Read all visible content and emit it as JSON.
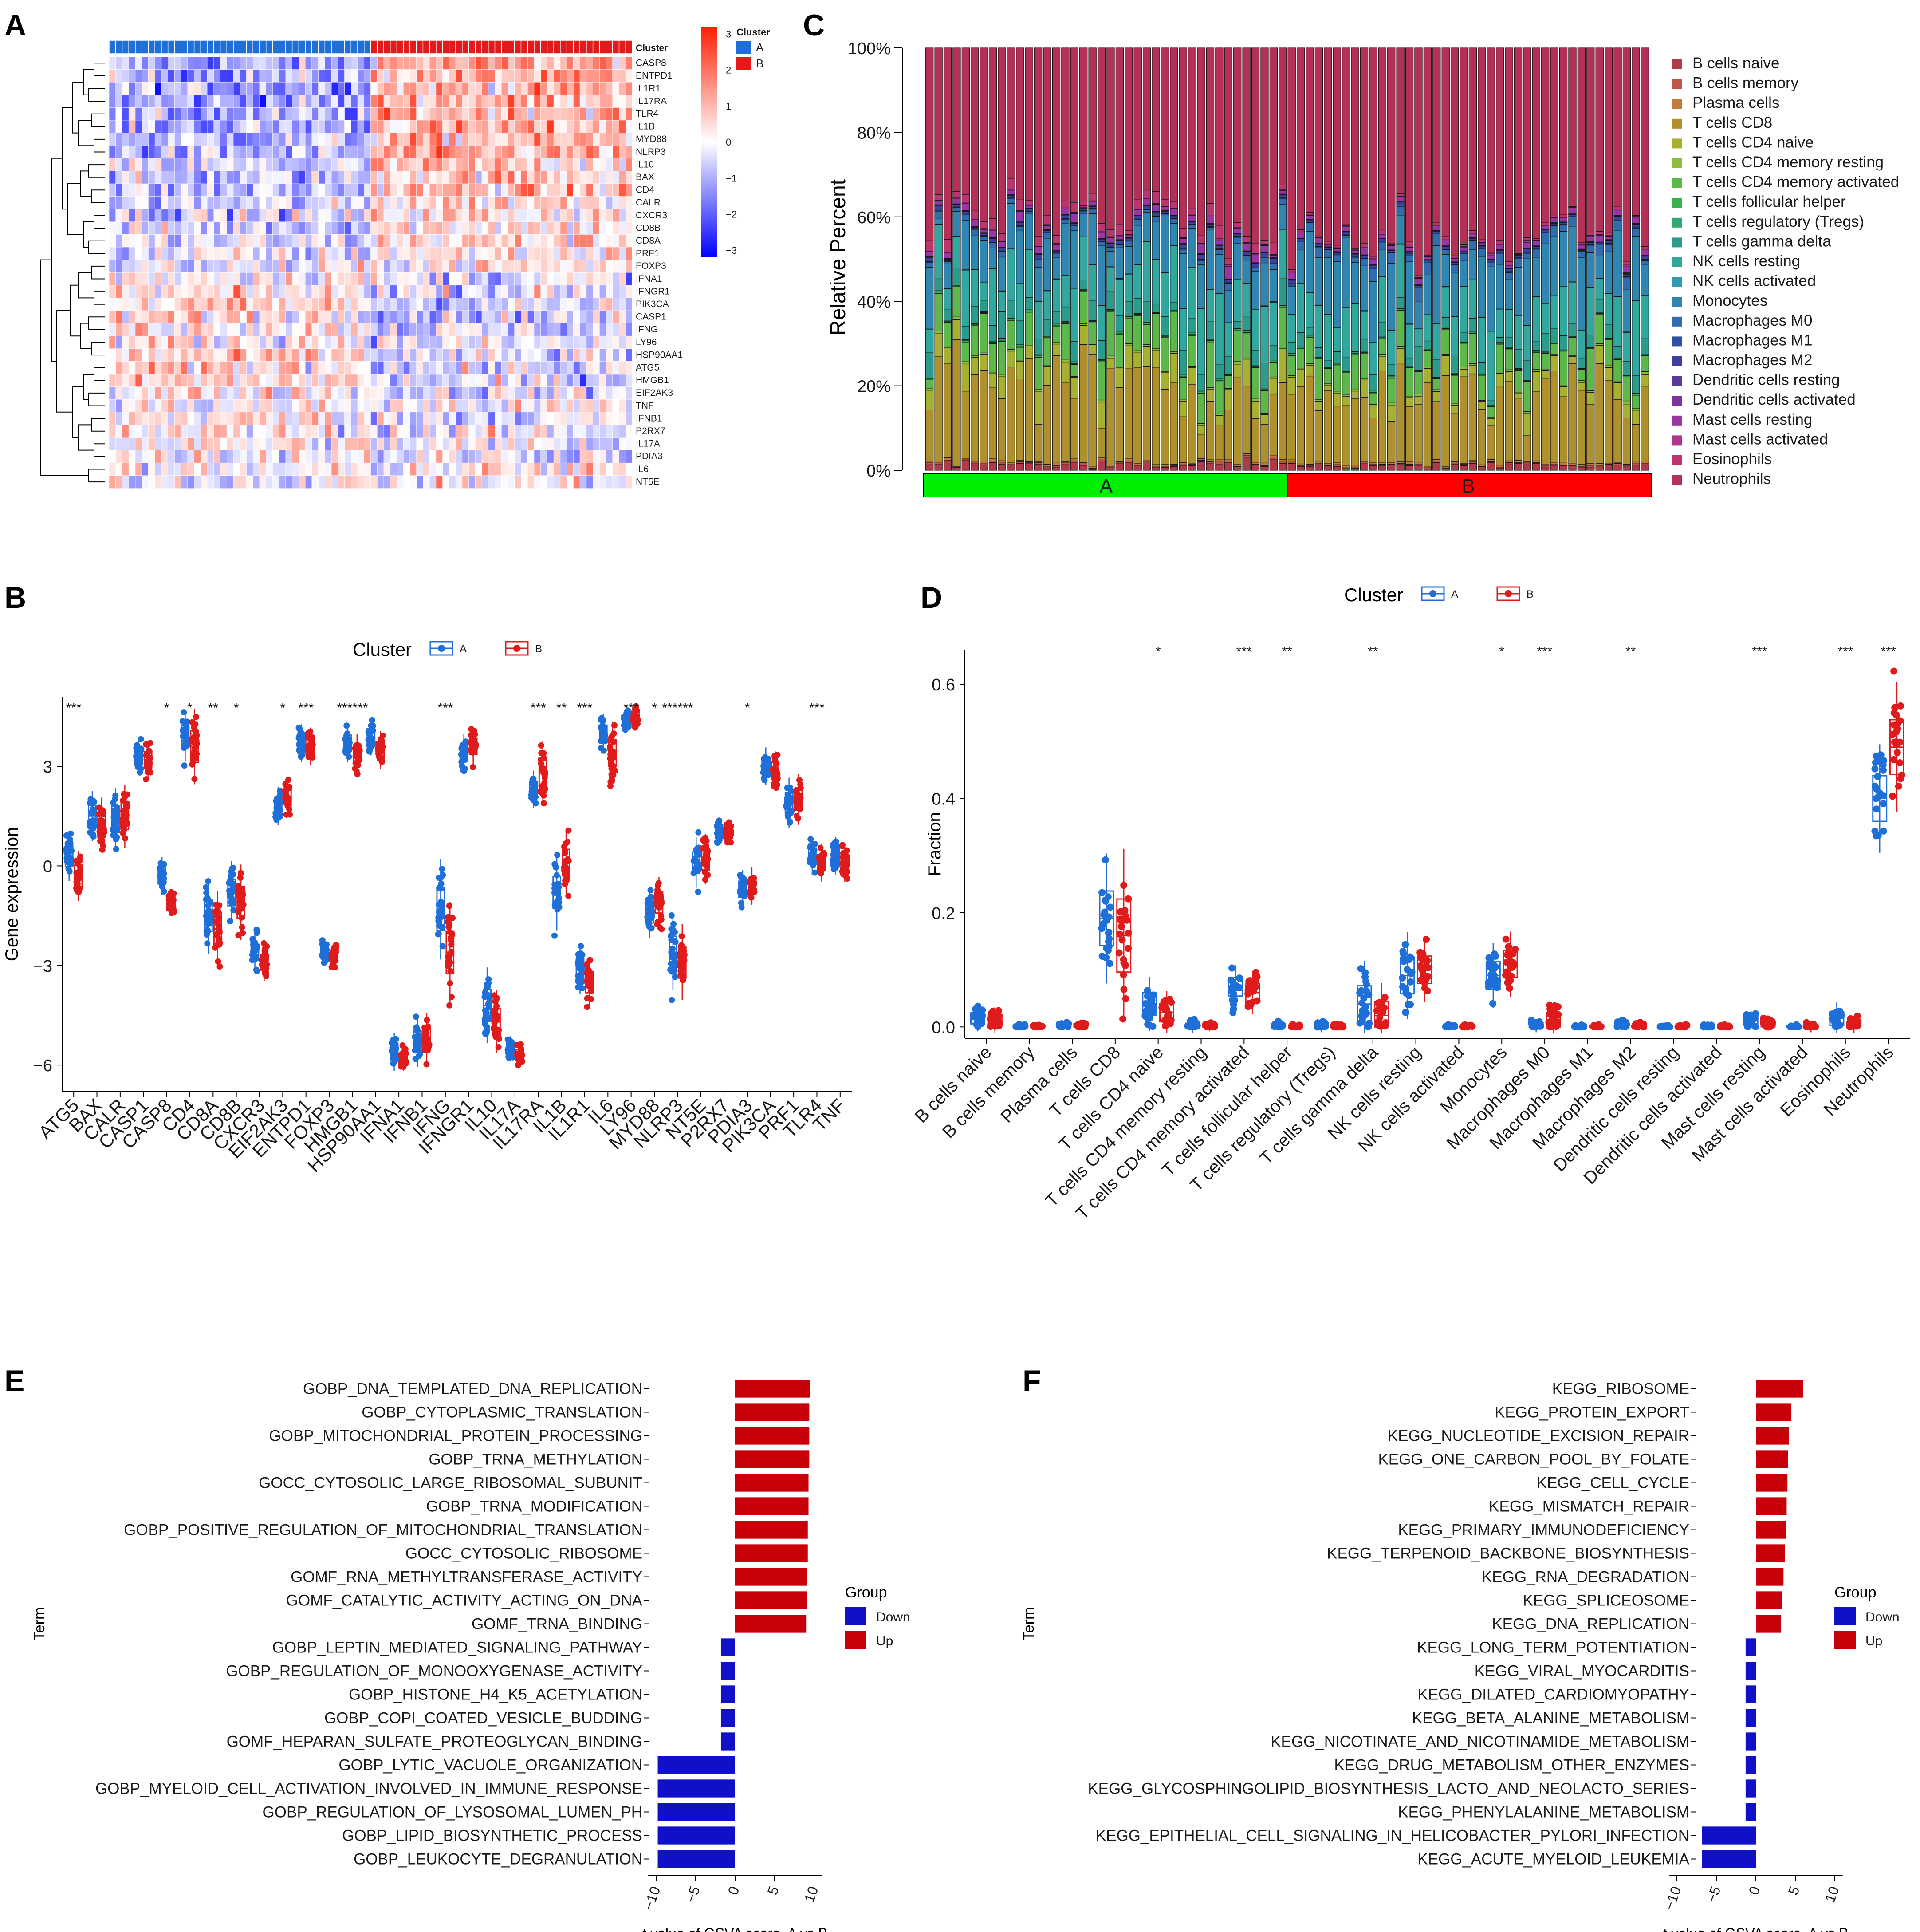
{
  "figure": {
    "panel_labels": [
      "A",
      "B",
      "C",
      "D",
      "E",
      "F"
    ],
    "colors": {
      "cluster_a": "#1f6fd8",
      "cluster_b": "#e01b1b",
      "up": "#c8000a",
      "down": "#1010c8",
      "group_green": "#00ee00",
      "group_red": "#ff0000"
    }
  },
  "chart_data": [
    {
      "panel": "A",
      "type": "heatmap",
      "annotation_label": "Cluster",
      "legend_title": "Cluster",
      "legend_items": [
        "A",
        "B"
      ],
      "colorbar_ticks": [
        3,
        2,
        1,
        0,
        -1,
        -2,
        -3
      ],
      "columns_per_group": 40,
      "genes": [
        "CASP8",
        "ENTPD1",
        "IL1R1",
        "IL17RA",
        "TLR4",
        "IL1B",
        "MYD88",
        "NLRP3",
        "IL10",
        "BAX",
        "CD4",
        "CALR",
        "CXCR3",
        "CD8B",
        "CD8A",
        "PRF1",
        "FOXP3",
        "IFNA1",
        "IFNGR1",
        "PIK3CA",
        "CASP1",
        "IFNG",
        "LY96",
        "HSP90AA1",
        "ATG5",
        "HMGB1",
        "EIF2AK3",
        "TNF",
        "IFNB1",
        "P2RX7",
        "IL17A",
        "PDIA3",
        "IL6",
        "NT5E"
      ],
      "row_group_bias": [
        -0.7,
        -0.6,
        -0.6,
        -0.7,
        -0.7,
        -0.6,
        -0.5,
        -0.6,
        -0.4,
        -0.5,
        -0.5,
        -0.4,
        -0.3,
        -0.3,
        -0.3,
        -0.2,
        -0.2,
        0.2,
        0.1,
        0.3,
        0.3,
        0.3,
        0.2,
        0.3,
        0.3,
        0.3,
        0.2,
        0.0,
        0.2,
        0.1,
        0.1,
        0.1,
        -0.1,
        0.0
      ]
    },
    {
      "panel": "B",
      "type": "box",
      "legend_title": "Cluster",
      "series_names": [
        "A",
        "B"
      ],
      "ylabel": "Gene expression",
      "yticks": [
        3,
        0,
        -3,
        -6
      ],
      "ylim": [
        -6.8,
        5.1
      ],
      "categories": [
        "ATG5",
        "BAX",
        "CALR",
        "CASP1",
        "CASP8",
        "CD4",
        "CD8A",
        "CD8B",
        "CXCR3",
        "EIF2AK3",
        "ENTPD1",
        "FOXP3",
        "HMGB1",
        "HSP90AA1",
        "IFNA1",
        "IFNB1",
        "IFNG",
        "IFNGR1",
        "IL10",
        "IL17A",
        "IL17RA",
        "IL1B",
        "IL1R1",
        "IL6",
        "LY96",
        "MYD88",
        "NLRP3",
        "NT5E",
        "P2RX7",
        "PDIA3",
        "PIK3CA",
        "PRF1",
        "TLR4",
        "TNF"
      ],
      "median_a": [
        0.3,
        1.5,
        1.4,
        3.3,
        -0.3,
        3.9,
        -1.5,
        -0.8,
        -2.6,
        1.8,
        3.7,
        -2.6,
        3.7,
        3.9,
        -5.6,
        -5.3,
        -1.3,
        3.4,
        -4.2,
        -5.5,
        2.3,
        -0.8,
        -3.1,
        4.0,
        4.4,
        -1.4,
        -2.6,
        0.1,
        1.0,
        -0.7,
        3.0,
        1.9,
        0.3,
        0.3
      ],
      "median_b": [
        -0.3,
        1.3,
        1.5,
        3.2,
        -1.1,
        3.6,
        -1.9,
        -1.1,
        -2.9,
        2.1,
        3.6,
        -2.7,
        3.4,
        3.5,
        -5.8,
        -5.2,
        -2.6,
        3.6,
        -4.7,
        -5.7,
        2.8,
        0.1,
        -3.5,
        3.4,
        4.5,
        -1.1,
        -2.9,
        0.2,
        1.0,
        -0.6,
        2.9,
        2.0,
        0.1,
        0.1
      ],
      "spread_a": [
        0.4,
        0.4,
        0.5,
        0.3,
        0.3,
        0.4,
        0.6,
        0.5,
        0.3,
        0.3,
        0.3,
        0.2,
        0.3,
        0.3,
        0.3,
        0.4,
        0.8,
        0.3,
        0.6,
        0.2,
        0.3,
        0.6,
        0.4,
        0.3,
        0.2,
        0.4,
        0.6,
        0.4,
        0.2,
        0.3,
        0.3,
        0.4,
        0.3,
        0.3
      ],
      "spread_b": [
        0.4,
        0.4,
        0.5,
        0.3,
        0.2,
        0.6,
        0.6,
        0.6,
        0.3,
        0.3,
        0.3,
        0.2,
        0.3,
        0.3,
        0.2,
        0.4,
        0.8,
        0.3,
        0.5,
        0.2,
        0.5,
        0.5,
        0.4,
        0.5,
        0.2,
        0.4,
        0.6,
        0.4,
        0.2,
        0.3,
        0.3,
        0.4,
        0.3,
        0.3
      ],
      "significance": [
        "***",
        "",
        "",
        "",
        "*",
        "*",
        "**",
        "*",
        "",
        "*",
        "***",
        "",
        "******",
        "",
        "",
        "",
        "***",
        "",
        "",
        "",
        "***",
        "**",
        "***",
        "",
        "***",
        "*",
        "******",
        "",
        "",
        "*",
        "",
        "",
        "***",
        ""
      ]
    },
    {
      "panel": "C",
      "type": "bar",
      "stacked": true,
      "ylabel": "Relative Percent",
      "yticks": [
        "0%",
        "20%",
        "40%",
        "60%",
        "80%",
        "100%"
      ],
      "group_labels": [
        "A",
        "B"
      ],
      "bars_per_group": 40,
      "legend": [
        "B cells naive",
        "B cells memory",
        "Plasma cells",
        "T cells CD8",
        "T cells CD4 naive",
        "T cells CD4 memory resting",
        "T cells CD4 memory activated",
        "T cells follicular helper",
        "T cells regulatory (Tregs)",
        "T cells gamma delta",
        "NK cells resting",
        "NK cells activated",
        "Monocytes",
        "Macrophages M0",
        "Macrophages M1",
        "Macrophages M2",
        "Dendritic cells resting",
        "Dendritic cells activated",
        "Mast cells resting",
        "Mast cells activated",
        "Eosinophils",
        "Neutrophils"
      ],
      "colors": [
        "#b23a48",
        "#c0574a",
        "#c47a3a",
        "#b0902a",
        "#a8b030",
        "#8cbc3a",
        "#5cb848",
        "#3ab050",
        "#30a870",
        "#2a9c8c",
        "#30a8a0",
        "#2f9ab0",
        "#2f86b0",
        "#2f6cb0",
        "#3050a8",
        "#3f3fa0",
        "#5a3a9c",
        "#7a35a0",
        "#9a35a8",
        "#b0358c",
        "#bc3570",
        "#b43057"
      ],
      "mean_fractions_a": [
        0.015,
        0.003,
        0.004,
        0.2,
        0.04,
        0.004,
        0.07,
        0.003,
        0.003,
        0.04,
        0.1,
        0.001,
        0.09,
        0.01,
        0.002,
        0.006,
        0.001,
        0.001,
        0.014,
        0.002,
        0.02,
        0.4
      ],
      "mean_fractions_b": [
        0.012,
        0.003,
        0.004,
        0.17,
        0.03,
        0.004,
        0.06,
        0.002,
        0.002,
        0.03,
        0.1,
        0.001,
        0.12,
        0.02,
        0.002,
        0.005,
        0.001,
        0.001,
        0.01,
        0.002,
        0.006,
        0.48
      ]
    },
    {
      "panel": "D",
      "type": "box",
      "legend_title": "Cluster",
      "series_names": [
        "A",
        "B"
      ],
      "ylabel": "Fraction",
      "yticks": [
        "0.0",
        "0.2",
        "0.4",
        "0.6"
      ],
      "ylim": [
        -0.02,
        0.66
      ],
      "categories": [
        "B cells naive",
        "B cells memory",
        "Plasma cells",
        "T cells CD8",
        "T cells CD4 naive",
        "T cells CD4 memory resting",
        "T cells CD4 memory activated",
        "T cells follicular helper",
        "T cells regulatory (Tregs)",
        "T cells gamma delta",
        "NK cells resting",
        "NK cells activated",
        "Monocytes",
        "Macrophages M0",
        "Macrophages M1",
        "Macrophages M2",
        "Dendritic cells resting",
        "Dendritic cells activated",
        "Mast cells resting",
        "Mast cells activated",
        "Eosinophils",
        "Neutrophils"
      ],
      "median_a": [
        0.015,
        0.0,
        0.002,
        0.19,
        0.04,
        0.0,
        0.07,
        0.002,
        0.002,
        0.04,
        0.09,
        0.0,
        0.09,
        0.002,
        0.0,
        0.004,
        0.0,
        0.0,
        0.012,
        0.0,
        0.015,
        0.4
      ],
      "median_b": [
        0.012,
        0.0,
        0.002,
        0.16,
        0.025,
        0.0,
        0.06,
        0.0,
        0.0,
        0.02,
        0.1,
        0.0,
        0.11,
        0.012,
        0.0,
        0.002,
        0.0,
        0.0,
        0.005,
        0.0,
        0.003,
        0.49
      ],
      "spread_a": [
        0.012,
        0.003,
        0.004,
        0.06,
        0.025,
        0.008,
        0.02,
        0.004,
        0.006,
        0.04,
        0.04,
        0.002,
        0.03,
        0.006,
        0.002,
        0.005,
        0.002,
        0.002,
        0.008,
        0.002,
        0.015,
        0.05
      ],
      "spread_b": [
        0.012,
        0.003,
        0.004,
        0.08,
        0.02,
        0.004,
        0.02,
        0.003,
        0.003,
        0.03,
        0.03,
        0.002,
        0.03,
        0.015,
        0.002,
        0.004,
        0.002,
        0.002,
        0.006,
        0.005,
        0.008,
        0.06
      ],
      "significance": [
        "",
        "",
        "",
        "",
        "*",
        "",
        "***",
        "**",
        "",
        "**",
        "",
        "",
        "*",
        "***",
        "",
        "**",
        "",
        "",
        "***",
        "",
        "***",
        "***"
      ]
    },
    {
      "panel": "E",
      "type": "bar",
      "orientation": "horizontal",
      "xlabel": "t value of GSVA score,  A vs B",
      "ylabel": "Term",
      "legend_title": "Group",
      "legend": [
        "Down",
        "Up"
      ],
      "xticks": [
        -10,
        -5,
        0,
        5,
        10
      ],
      "xlim": [
        -11,
        11
      ],
      "terms": [
        "GOBP_DNA_TEMPLATED_DNA_REPLICATION",
        "GOBP_CYTOPLASMIC_TRANSLATION",
        "GOBP_MITOCHONDRIAL_PROTEIN_PROCESSING",
        "GOBP_TRNA_METHYLATION",
        "GOCC_CYTOSOLIC_LARGE_RIBOSOMAL_SUBUNIT",
        "GOBP_TRNA_MODIFICATION",
        "GOBP_POSITIVE_REGULATION_OF_MITOCHONDRIAL_TRANSLATION",
        "GOCC_CYTOSOLIC_RIBOSOME",
        "GOMF_RNA_METHYLTRANSFERASE_ACTIVITY",
        "GOMF_CATALYTIC_ACTIVITY_ACTING_ON_DNA",
        "GOMF_TRNA_BINDING",
        "GOBP_LEPTIN_MEDIATED_SIGNALING_PATHWAY",
        "GOBP_REGULATION_OF_MONOOXYGENASE_ACTIVITY",
        "GOBP_HISTONE_H4_K5_ACETYLATION",
        "GOBP_COPI_COATED_VESICLE_BUDDING",
        "GOMF_HEPARAN_SULFATE_PROTEOGLYCAN_BINDING",
        "GOBP_LYTIC_VACUOLE_ORGANIZATION",
        "GOBP_MYELOID_CELL_ACTIVATION_INVOLVED_IN_IMMUNE_RESPONSE",
        "GOBP_REGULATION_OF_LYSOSOMAL_LUMEN_PH",
        "GOBP_LIPID_BIOSYNTHETIC_PROCESS",
        "GOBP_LEUKOCYTE_DEGRANULATION"
      ],
      "values": [
        9.5,
        9.4,
        9.4,
        9.4,
        9.3,
        9.3,
        9.2,
        9.2,
        9.1,
        9.1,
        9.0,
        -1.8,
        -1.8,
        -1.8,
        -1.8,
        -1.8,
        -9.8,
        -9.8,
        -9.8,
        -9.8,
        -9.8
      ]
    },
    {
      "panel": "F",
      "type": "bar",
      "orientation": "horizontal",
      "xlabel": "t value of GSVA score,  A vs B",
      "ylabel": "Term",
      "legend_title": "Group",
      "legend": [
        "Down",
        "Up"
      ],
      "xticks": [
        -10,
        -5,
        0,
        5,
        10
      ],
      "xlim": [
        -11,
        11
      ],
      "terms": [
        "KEGG_RIBOSOME",
        "KEGG_PROTEIN_EXPORT",
        "KEGG_NUCLEOTIDE_EXCISION_REPAIR",
        "KEGG_ONE_CARBON_POOL_BY_FOLATE",
        "KEGG_CELL_CYCLE",
        "KEGG_MISMATCH_REPAIR",
        "KEGG_PRIMARY_IMMUNODEFICIENCY",
        "KEGG_TERPENOID_BACKBONE_BIOSYNTHESIS",
        "KEGG_RNA_DEGRADATION",
        "KEGG_SPLICEOSOME",
        "KEGG_DNA_REPLICATION",
        "KEGG_LONG_TERM_POTENTIATION",
        "KEGG_VIRAL_MYOCARDITIS",
        "KEGG_DILATED_CARDIOMYOPATHY",
        "KEGG_BETA_ALANINE_METABOLISM",
        "KEGG_NICOTINATE_AND_NICOTINAMIDE_METABOLISM",
        "KEGG_DRUG_METABOLISM_OTHER_ENZYMES",
        "KEGG_GLYCOSPHINGOLIPID_BIOSYNTHESIS_LACTO_AND_NEOLACTO_SERIES",
        "KEGG_PHENYLALANINE_METABOLISM",
        "KEGG_EPITHELIAL_CELL_SIGNALING_IN_HELICOBACTER_PYLORI_INFECTION",
        "KEGG_ACUTE_MYELOID_LEUKEMIA"
      ],
      "values": [
        6.0,
        4.5,
        4.2,
        4.1,
        4.0,
        3.9,
        3.8,
        3.7,
        3.5,
        3.3,
        3.2,
        -1.3,
        -1.3,
        -1.3,
        -1.3,
        -1.3,
        -1.3,
        -1.3,
        -1.3,
        -6.8,
        -6.8
      ]
    }
  ]
}
